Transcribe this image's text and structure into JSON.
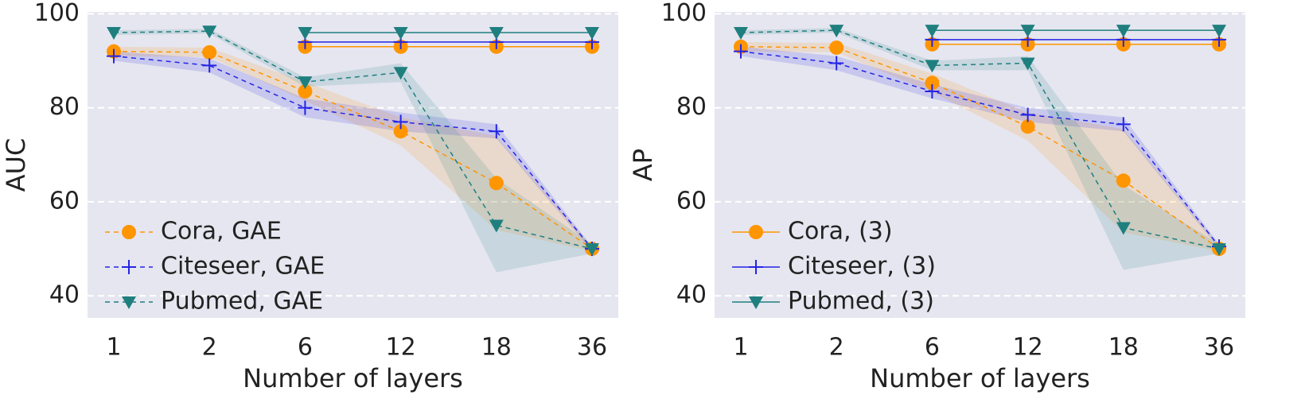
{
  "chart_data": [
    {
      "type": "line",
      "xlabel": "Number of layers",
      "ylabel": "AUC",
      "categories": [
        "1",
        "2",
        "6",
        "12",
        "18",
        "36"
      ],
      "ylim": [
        35.3,
        100.4
      ],
      "yticks": [
        40,
        60,
        80,
        100
      ],
      "grid": true,
      "legend": "lower left",
      "series": [
        {
          "name": "Cora, GAE",
          "color": "#ff9500",
          "style": "dashed",
          "marker": "o",
          "values": [
            92,
            91.8,
            83.5,
            75,
            64,
            50
          ],
          "errors": [
            1,
            1,
            2,
            3,
            10,
            0.5
          ]
        },
        {
          "name": "Citeseer, GAE",
          "color": "#2424e6",
          "style": "dashed",
          "marker": "+",
          "values": [
            91,
            89,
            80,
            77,
            75,
            50
          ],
          "errors": [
            1,
            1.5,
            2,
            2,
            1.5,
            0.5
          ]
        },
        {
          "name": "Pubmed, GAE",
          "color": "#1f7f7f",
          "style": "dashed",
          "marker": "v",
          "values": [
            96,
            96.3,
            85.5,
            87.5,
            55,
            50
          ],
          "errors": [
            0.5,
            0.5,
            1,
            2,
            10,
            1
          ]
        },
        {
          "color": "#ff9500",
          "style": "solid",
          "marker": "o",
          "values": [
            null,
            null,
            93,
            93,
            93,
            93
          ]
        },
        {
          "color": "#2424e6",
          "style": "solid",
          "marker": "+",
          "values": [
            null,
            null,
            94,
            94,
            94,
            94
          ]
        },
        {
          "color": "#1f7f7f",
          "style": "solid",
          "marker": "v",
          "values": [
            null,
            null,
            96,
            96,
            96,
            96
          ]
        }
      ]
    },
    {
      "type": "line",
      "xlabel": "Number of layers",
      "ylabel": "AP",
      "categories": [
        "1",
        "2",
        "6",
        "12",
        "18",
        "36"
      ],
      "ylim": [
        35.3,
        100.4
      ],
      "yticks": [
        40,
        60,
        80,
        100
      ],
      "grid": true,
      "legend": "lower left",
      "series": [
        {
          "color": "#ff9500",
          "style": "dashed",
          "marker": "o",
          "values": [
            93,
            92.8,
            85.3,
            76,
            64.5,
            50
          ],
          "errors": [
            1,
            1,
            2,
            3,
            11,
            0.5
          ]
        },
        {
          "color": "#2424e6",
          "style": "dashed",
          "marker": "+",
          "values": [
            92,
            89.5,
            83.5,
            78.5,
            76.5,
            50.5
          ],
          "errors": [
            1,
            1.5,
            1.5,
            1.5,
            1.5,
            0.5
          ]
        },
        {
          "color": "#1f7f7f",
          "style": "dashed",
          "marker": "v",
          "values": [
            96,
            96.5,
            89,
            89.5,
            54.5,
            50
          ],
          "errors": [
            0.5,
            0.5,
            1,
            1.5,
            9,
            1
          ]
        },
        {
          "name": "Cora, (3)",
          "color": "#ff9500",
          "style": "solid",
          "marker": "o",
          "values": [
            null,
            null,
            93.5,
            93.5,
            93.5,
            93.5
          ]
        },
        {
          "name": "Citeseer, (3)",
          "color": "#2424e6",
          "style": "solid",
          "marker": "+",
          "values": [
            null,
            null,
            94.5,
            94.5,
            94.5,
            94.5
          ]
        },
        {
          "name": "Pubmed, (3)",
          "color": "#1f7f7f",
          "style": "solid",
          "marker": "v",
          "values": [
            null,
            null,
            96.5,
            96.5,
            96.5,
            96.5
          ]
        }
      ]
    }
  ]
}
